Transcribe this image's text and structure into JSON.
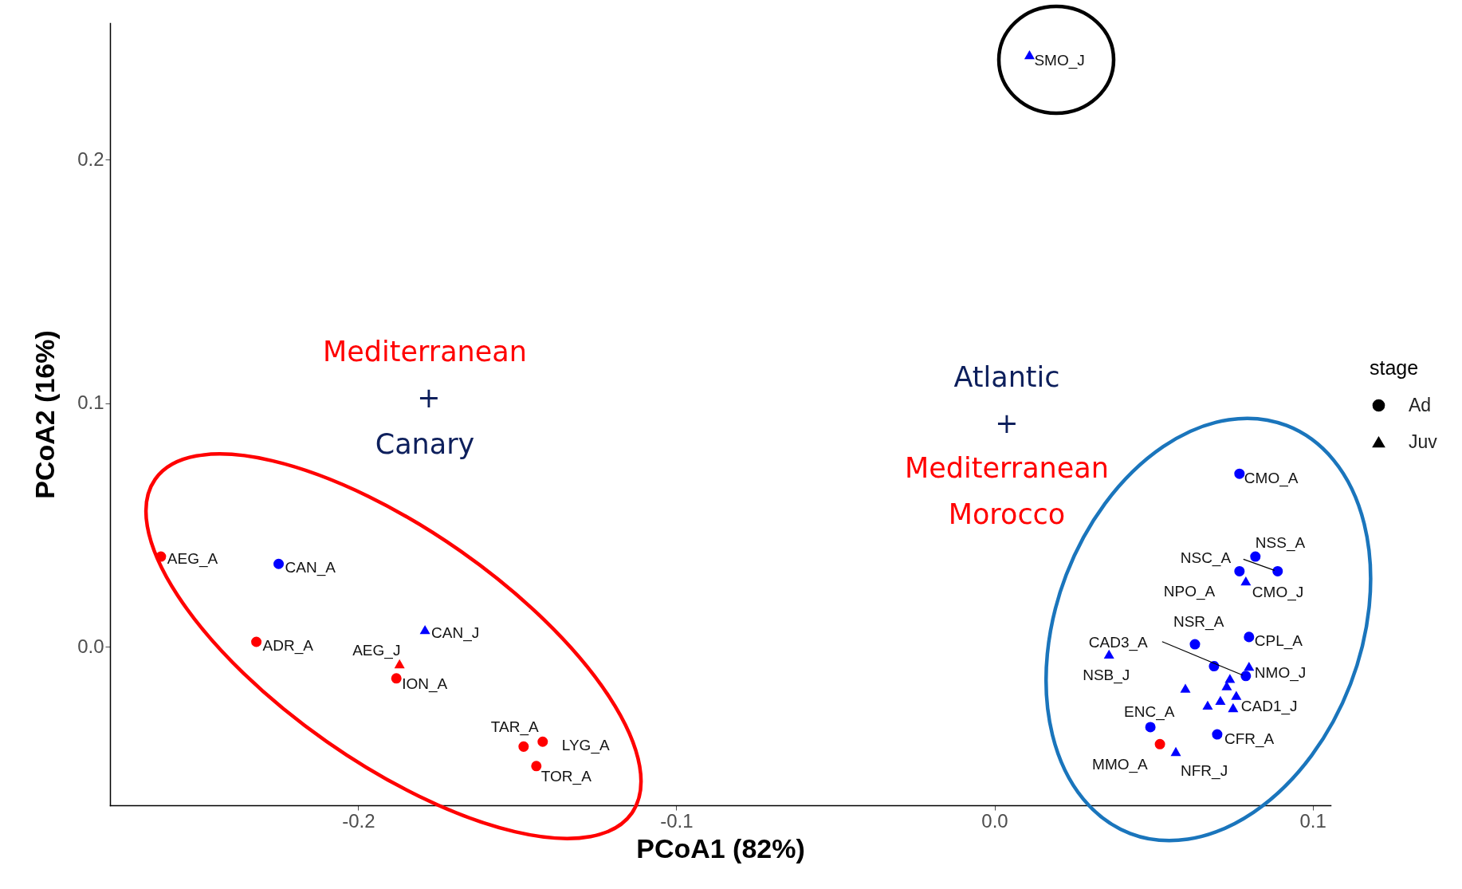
{
  "chart_data": {
    "type": "scatter",
    "xlabel": "PCoA1 (82%)",
    "ylabel": "PCoA2 (16%)",
    "legend_title": "stage",
    "legend": "right",
    "grid": false,
    "xlim": [
      -0.278,
      0.1056
    ],
    "ylim": [
      -0.0651,
      0.256
    ],
    "xticks": [
      -0.2,
      -0.1,
      {
        "value": 0,
        "label": "0.0"
      },
      0.1
    ],
    "yticks": [
      {
        "value": 0,
        "label": "0.0"
      },
      0.1,
      0.2
    ],
    "series": [
      {
        "name": "Ad",
        "marker": "circle",
        "x": [
          -0.262,
          -0.225,
          -0.232,
          -0.188,
          -0.148,
          -0.142,
          -0.144,
          0.077,
          0.082,
          0.089,
          0.077,
          0.063,
          0.08,
          0.079,
          0.069,
          0.049,
          0.07,
          0.052
        ],
        "values": [
          0.037,
          0.034,
          0.002,
          -0.013,
          -0.041,
          -0.039,
          -0.049,
          0.071,
          0.037,
          0.031,
          0.031,
          0.001,
          0.004,
          -0.012,
          -0.008,
          -0.033,
          -0.036,
          -0.04
        ],
        "colors": [
          "#ff0000",
          "#0000ff",
          "#ff0000",
          "#ff0000",
          "#ff0000",
          "#ff0000",
          "#ff0000",
          "#0000ff",
          "#0000ff",
          "#0000ff",
          "#0000ff",
          "#0000ff",
          "#0000ff",
          "#0000ff",
          "#0000ff",
          "#0000ff",
          "#0000ff",
          "#ff0000"
        ]
      },
      {
        "name": "Juv",
        "marker": "triangle",
        "x": [
          -0.179,
          -0.187,
          0.011,
          0.079,
          0.08,
          0.036,
          0.06,
          0.074,
          0.073,
          0.067,
          0.071,
          0.076,
          0.075,
          0.057
        ],
        "values": [
          0.007,
          -0.007,
          0.243,
          0.027,
          -0.008,
          -0.003,
          -0.017,
          -0.013,
          -0.016,
          -0.024,
          -0.022,
          -0.02,
          -0.025,
          -0.043
        ],
        "colors": [
          "#0000ff",
          "#ff0000",
          "#0000ff",
          "#0000ff",
          "#0000ff",
          "#0000ff",
          "#0000ff",
          "#0000ff",
          "#0000ff",
          "#0000ff",
          "#0000ff",
          "#0000ff",
          "#0000ff",
          "#0000ff"
        ]
      }
    ],
    "annotations": [
      "Mediterranean",
      "+",
      "Canary",
      "Atlantic",
      "+",
      "Mediterranean",
      "Morocco",
      {
        "text": "AEG_A",
        "x": -0.262,
        "y": 0.037
      },
      {
        "text": "CAN_A",
        "x": -0.225,
        "y": 0.034
      },
      {
        "text": "ADR_A",
        "x": -0.232,
        "y": 0.002
      },
      {
        "text": "CAN_J",
        "x": -0.179,
        "y": 0.007
      },
      {
        "text": "AEG_J",
        "x": -0.187,
        "y": -0.007
      },
      {
        "text": "ION_A",
        "x": -0.188,
        "y": -0.013
      },
      {
        "text": "TAR_A",
        "x": -0.148,
        "y": -0.041
      },
      {
        "text": "LYG_A",
        "x": -0.142,
        "y": -0.039
      },
      {
        "text": "TOR_A",
        "x": -0.144,
        "y": -0.049
      },
      {
        "text": "SMO_J",
        "x": 0.011,
        "y": 0.243
      },
      {
        "text": "CMO_A",
        "x": 0.077,
        "y": 0.071
      },
      {
        "text": "NSS_A",
        "x": 0.082,
        "y": 0.037
      },
      {
        "text": "NSC_A",
        "x": 0.089,
        "y": 0.031
      },
      {
        "text": "NPO_A",
        "x": 0.077,
        "y": 0.031
      },
      {
        "text": "CMO_J",
        "x": 0.079,
        "y": 0.027
      },
      {
        "text": "NSR_A",
        "x": 0.063,
        "y": 0.001
      },
      {
        "text": "CPL_A",
        "x": 0.08,
        "y": 0.004
      },
      {
        "text": "CAD3_A",
        "x": 0.079,
        "y": -0.012
      },
      {
        "text": "NMO_J",
        "x": 0.08,
        "y": -0.008
      },
      {
        "text": "NSB_J",
        "x": 0.036,
        "y": -0.003
      },
      {
        "text": "CAD1_J",
        "x": 0.075,
        "y": -0.025
      },
      {
        "text": "ENC_A",
        "x": 0.049,
        "y": -0.033
      },
      {
        "text": "CFR_A",
        "x": 0.07,
        "y": -0.036
      },
      {
        "text": "MMO_A",
        "x": 0.052,
        "y": -0.04
      },
      {
        "text": "NFR_J",
        "x": 0.057,
        "y": -0.043
      }
    ]
  }
}
